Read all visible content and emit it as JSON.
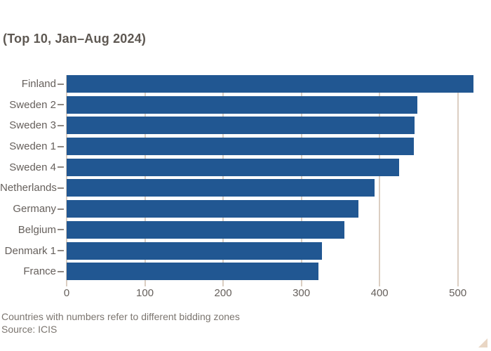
{
  "chart_data": {
    "type": "bar",
    "orientation": "horizontal",
    "subtitle": "(Top 10, Jan–Aug 2024)",
    "categories": [
      "Finland",
      "Sweden 2",
      "Sweden 3",
      "Sweden 1",
      "Sweden 4",
      "Netherlands",
      "Germany",
      "Belgium",
      "Denmark 1",
      "France"
    ],
    "values": [
      520,
      448,
      445,
      444,
      425,
      394,
      373,
      355,
      326,
      322
    ],
    "xticks": [
      0,
      100,
      200,
      300,
      400,
      500
    ],
    "xlim": [
      0,
      520
    ],
    "grid": "vertical",
    "footnote": "Countries with numbers refer to different bidding zones",
    "source": "Source: ICIS",
    "colors": {
      "bar": "#215792",
      "gridline": "#dbcec2",
      "category_tick": "#8f8882",
      "axis_text": "#66605c",
      "subtitle_text": "#5e5852",
      "footnote_text": "#7b756f",
      "corner_mark": "#e9d6c4",
      "background": "#ffffff"
    }
  }
}
